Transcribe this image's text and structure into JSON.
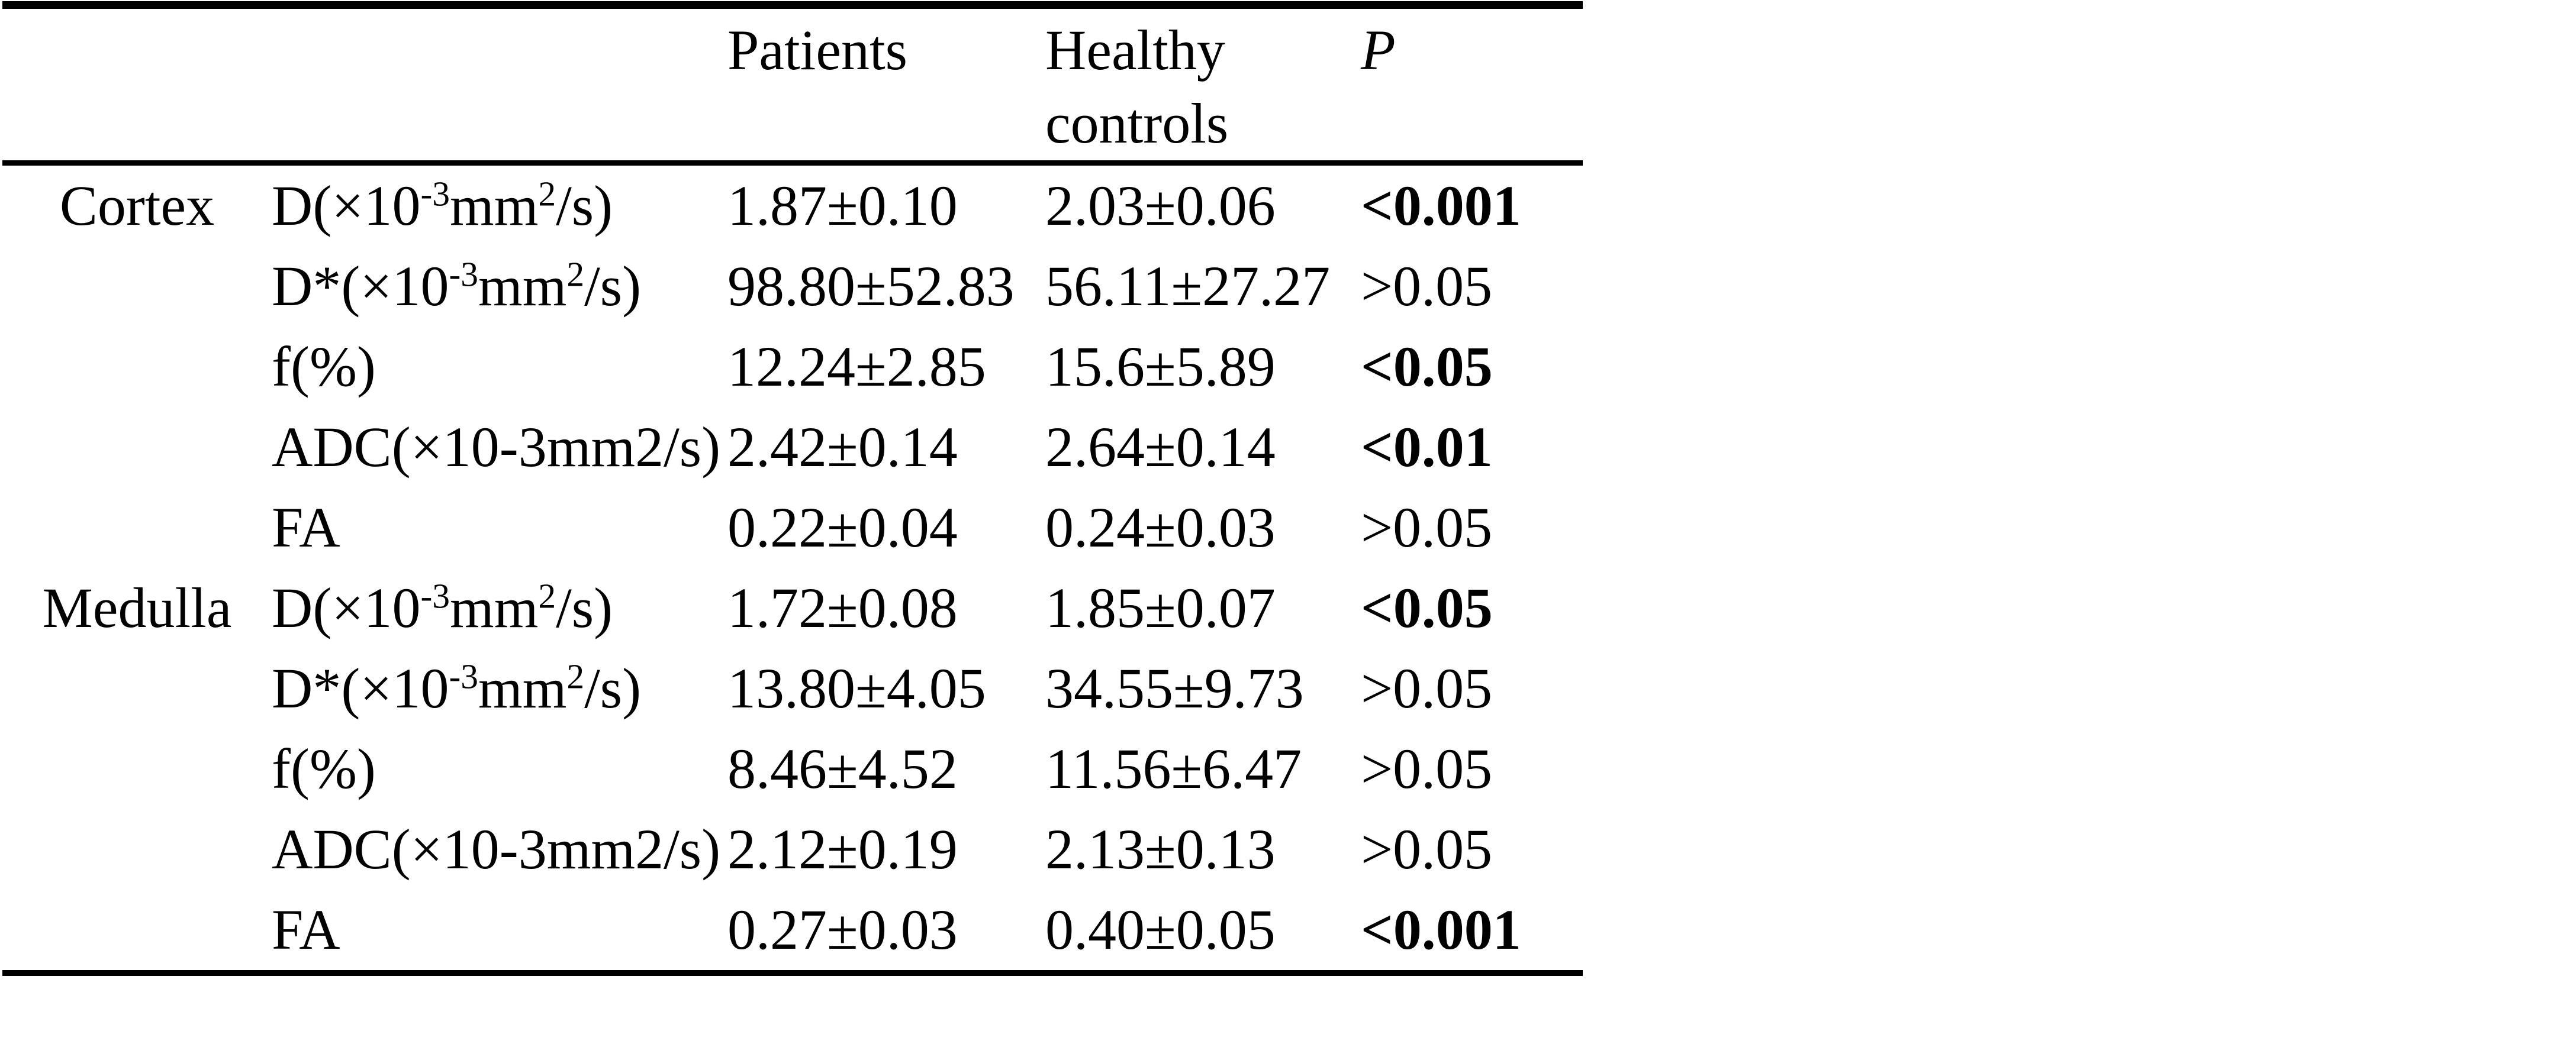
{
  "colors": {
    "text": "#000000",
    "background": "#ffffff"
  },
  "table": {
    "header": {
      "region": "",
      "parameter": "",
      "patients": "Patients",
      "controls": "Healthy controls",
      "p": "P"
    },
    "rows": [
      {
        "region": "Cortex",
        "parameter": [
          {
            "t": "D(×10"
          },
          {
            "t": "-3",
            "sup": true
          },
          {
            "t": "mm"
          },
          {
            "t": "2",
            "sup": true
          },
          {
            "t": "/s)"
          }
        ],
        "patients": "1.87±0.10",
        "controls": "2.03±0.06",
        "p": "<0.001",
        "p_bold": true
      },
      {
        "region": "",
        "parameter": [
          {
            "t": "D*(×10"
          },
          {
            "t": "-3",
            "sup": true
          },
          {
            "t": "mm"
          },
          {
            "t": "2",
            "sup": true
          },
          {
            "t": "/s)"
          }
        ],
        "patients": "98.80±52.83",
        "controls": "56.11±27.27",
        "p": ">0.05",
        "p_bold": false
      },
      {
        "region": "",
        "parameter": [
          {
            "t": "f(%)"
          }
        ],
        "patients": "12.24±2.85",
        "controls": "15.6±5.89",
        "p": "<0.05",
        "p_bold": true
      },
      {
        "region": "",
        "parameter": [
          {
            "t": "ADC(×10-3mm2/s)"
          }
        ],
        "patients": "2.42±0.14",
        "controls": "2.64±0.14",
        "p": "<0.01",
        "p_bold": true
      },
      {
        "region": "",
        "parameter": [
          {
            "t": "FA"
          }
        ],
        "patients": "0.22±0.04",
        "controls": "0.24±0.03",
        "p": ">0.05",
        "p_bold": false
      },
      {
        "region": "Medulla",
        "parameter": [
          {
            "t": "D(×10"
          },
          {
            "t": "-3",
            "sup": true
          },
          {
            "t": "mm"
          },
          {
            "t": "2",
            "sup": true
          },
          {
            "t": "/s)"
          }
        ],
        "patients": "1.72±0.08",
        "controls": "1.85±0.07",
        "p": "<0.05",
        "p_bold": true
      },
      {
        "region": "",
        "parameter": [
          {
            "t": "D*(×10"
          },
          {
            "t": "-3",
            "sup": true
          },
          {
            "t": "mm"
          },
          {
            "t": "2",
            "sup": true
          },
          {
            "t": "/s)"
          }
        ],
        "patients": "13.80±4.05",
        "controls": "34.55±9.73",
        "p": ">0.05",
        "p_bold": false
      },
      {
        "region": "",
        "parameter": [
          {
            "t": "f(%)"
          }
        ],
        "patients": "8.46±4.52",
        "controls": "11.56±6.47",
        "p": ">0.05",
        "p_bold": false
      },
      {
        "region": "",
        "parameter": [
          {
            "t": "ADC(×10-3mm2/s)"
          }
        ],
        "patients": "2.12±0.19",
        "controls": "2.13±0.13",
        "p": ">0.05",
        "p_bold": false
      },
      {
        "region": "",
        "parameter": [
          {
            "t": "FA"
          }
        ],
        "patients": "0.27±0.03",
        "controls": "0.40±0.05",
        "p": "<0.001",
        "p_bold": true
      }
    ]
  }
}
